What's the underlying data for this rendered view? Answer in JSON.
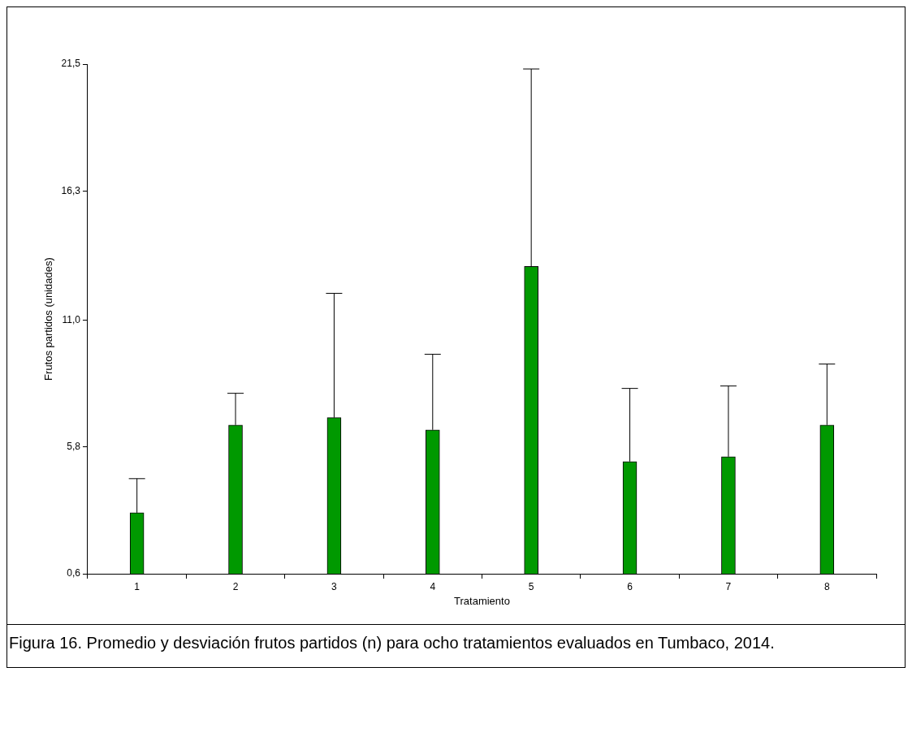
{
  "chart_data": {
    "type": "bar",
    "xlabel": "Tratamiento",
    "ylabel": "Frutos partidos (unidades)",
    "categories": [
      "1",
      "2",
      "3",
      "4",
      "5",
      "6",
      "7",
      "8"
    ],
    "series": [
      {
        "color": "#009900",
        "values": [
          3.1,
          6.7,
          7.0,
          6.5,
          13.2,
          5.2,
          5.4,
          6.7
        ],
        "errors": [
          [
            3.1,
            4.5
          ],
          [
            6.7,
            8.0
          ],
          [
            7.0,
            12.1
          ],
          [
            6.5,
            9.6
          ],
          [
            13.2,
            21.3
          ],
          [
            5.2,
            8.2
          ],
          [
            5.4,
            8.3
          ],
          [
            6.7,
            9.2
          ]
        ]
      }
    ],
    "ylim": [
      0.6,
      21.5
    ],
    "yticks": [
      {
        "value": 0.6,
        "label": "0,6"
      },
      {
        "value": 5.8,
        "label": "5,8"
      },
      {
        "value": 11.0,
        "label": "11,0"
      },
      {
        "value": 16.3,
        "label": "16,3"
      },
      {
        "value": 21.5,
        "label": "21,5"
      }
    ],
    "grid": false,
    "legend": false,
    "annotations": [
      "Figura 16. Promedio y desviación frutos partidos (n) para ocho tratamientos evaluados en Tumbaco, 2014."
    ]
  }
}
